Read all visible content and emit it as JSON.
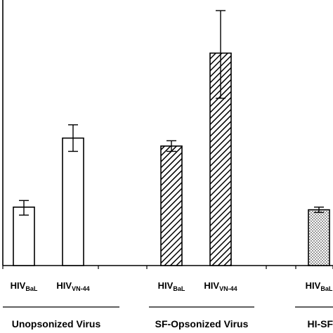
{
  "chart_data": {
    "type": "bar",
    "title": "",
    "xlabel": "",
    "ylabel": "",
    "ylim": [
      0,
      1
    ],
    "axis_ticks_shown": false,
    "grid": false,
    "legend": "none",
    "groups": [
      {
        "label": "Unopsonized Virus",
        "bars": [
          {
            "label_main": "HIV",
            "label_sub": "BaL",
            "value": 0.22,
            "err_low": 0.19,
            "err_high": 0.245,
            "pattern": "white"
          },
          {
            "label_main": "HIV",
            "label_sub": "VN-44",
            "value": 0.48,
            "err_low": 0.43,
            "err_high": 0.53,
            "pattern": "white"
          }
        ]
      },
      {
        "label": "SF-Opsonized Virus",
        "bars": [
          {
            "label_main": "HIV",
            "label_sub": "BaL",
            "value": 0.45,
            "err_low": 0.43,
            "err_high": 0.47,
            "pattern": "diagonal-hatch"
          },
          {
            "label_main": "HIV",
            "label_sub": "VN-44",
            "value": 0.8,
            "err_low": 0.63,
            "err_high": 0.96,
            "pattern": "diagonal-hatch"
          }
        ]
      },
      {
        "label": "HI-SF-Opso",
        "bars": [
          {
            "label_main": "HIV",
            "label_sub": "BaL",
            "value": 0.21,
            "err_low": 0.2,
            "err_high": 0.22,
            "pattern": "dotted"
          }
        ]
      }
    ],
    "colors": {
      "stroke": "#000000",
      "fill": "#ffffff"
    }
  }
}
